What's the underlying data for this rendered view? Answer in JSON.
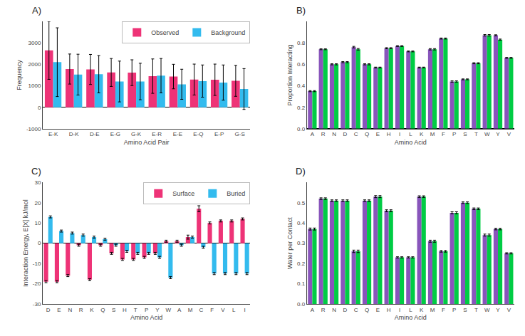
{
  "chart_data": [
    {
      "type": "bar",
      "title": "A)",
      "x_label": "Amino Acid Pair",
      "y_label": "Frequency",
      "categories": [
        "E-K",
        "D-K",
        "D-E",
        "E-G",
        "G-K",
        "E-R",
        "E-E",
        "E-Q",
        "E-P",
        "G-S"
      ],
      "series": [
        {
          "name": "Observed",
          "color": "#EE3377",
          "values": [
            2650,
            1780,
            1760,
            1620,
            1610,
            1450,
            1430,
            1290,
            1280,
            1230
          ],
          "error_plus": [
            1350,
            700,
            700,
            650,
            600,
            800,
            570,
            720,
            730,
            720
          ],
          "error_minus": [
            1350,
            700,
            700,
            650,
            600,
            800,
            570,
            720,
            730,
            720
          ]
        },
        {
          "name": "Background",
          "color": "#33BBEE",
          "values": [
            2100,
            1520,
            1540,
            1200,
            1200,
            1470,
            1070,
            1220,
            1150,
            850
          ],
          "error_plus": [
            1600,
            950,
            870,
            950,
            850,
            800,
            700,
            750,
            820,
            950
          ],
          "error_minus": [
            1600,
            950,
            870,
            950,
            850,
            800,
            700,
            750,
            820,
            950
          ]
        }
      ],
      "ylim": [
        -1000,
        4000
      ],
      "yticks": [
        -1000,
        0,
        1000,
        2000,
        3000
      ],
      "grid": false,
      "legend": "upper right"
    },
    {
      "type": "bar",
      "title": "B)",
      "x_label": "Amino Acid",
      "y_label": "Proportion Interacting",
      "categories": [
        "A",
        "R",
        "N",
        "D",
        "C",
        "Q",
        "E",
        "H",
        "I",
        "L",
        "K",
        "M",
        "F",
        "P",
        "S",
        "T",
        "W",
        "Y",
        "V"
      ],
      "series": [
        {
          "color": "#8855BB",
          "values": [
            0.35,
            0.74,
            0.6,
            0.62,
            0.76,
            0.6,
            0.57,
            0.75,
            0.77,
            0.72,
            0.57,
            0.74,
            0.84,
            0.44,
            0.46,
            0.61,
            0.87,
            0.87,
            0.66
          ],
          "errors": [
            0.005,
            0.004,
            0.005,
            0.005,
            0.007,
            0.005,
            0.004,
            0.005,
            0.004,
            0.004,
            0.004,
            0.006,
            0.005,
            0.006,
            0.004,
            0.005,
            0.007,
            0.005,
            0.004
          ]
        },
        {
          "color": "#00CC44",
          "values": [
            0.35,
            0.74,
            0.6,
            0.62,
            0.74,
            0.6,
            0.57,
            0.75,
            0.77,
            0.72,
            0.57,
            0.74,
            0.84,
            0.44,
            0.46,
            0.61,
            0.87,
            0.83,
            0.66
          ],
          "errors": [
            0.005,
            0.004,
            0.005,
            0.005,
            0.007,
            0.005,
            0.004,
            0.005,
            0.004,
            0.004,
            0.004,
            0.006,
            0.005,
            0.006,
            0.004,
            0.005,
            0.007,
            0.005,
            0.004
          ]
        }
      ],
      "ylim": [
        0.0,
        1.0
      ],
      "yticks": [
        {
          "value": 0.0,
          "label": "0.0"
        },
        0.2,
        0.4,
        0.6,
        0.8
      ],
      "grid": false
    },
    {
      "type": "bar",
      "title": "C)",
      "x_label": "Amino Acid",
      "y_label": "Interaction Energy, E[X] kJ/mol",
      "categories": [
        "D",
        "E",
        "N",
        "R",
        "K",
        "Q",
        "S",
        "H",
        "T",
        "P",
        "Y",
        "W",
        "A",
        "M",
        "C",
        "F",
        "V",
        "L",
        "I"
      ],
      "series": [
        {
          "name": "Surface",
          "color": "#EE3377",
          "values": [
            -19,
            -19,
            -16,
            -1,
            -18,
            -1,
            -5,
            -8,
            -8,
            -7,
            -5,
            1,
            1,
            3,
            17,
            10,
            11,
            11,
            12
          ],
          "errors": [
            0.5,
            0.5,
            0.5,
            0.5,
            0.5,
            0.5,
            0.5,
            0.5,
            0.5,
            0.5,
            0.5,
            0.5,
            0.5,
            1.0,
            1.5,
            0.5,
            0.5,
            0.5,
            0.5
          ]
        },
        {
          "name": "Buried",
          "color": "#33BBEE",
          "values": [
            13,
            6,
            5,
            4,
            3,
            2,
            -1,
            -4,
            -5,
            -5,
            -7,
            -17,
            -1,
            3,
            -2,
            -15,
            -15,
            -15,
            -15
          ],
          "errors": [
            0.5,
            0.5,
            0.5,
            0.5,
            0.5,
            0.5,
            0.5,
            0.5,
            0.5,
            0.5,
            0.5,
            0.5,
            0.5,
            0.5,
            0.5,
            0.5,
            0.5,
            0.5,
            0.5
          ]
        }
      ],
      "ylim": [
        -30,
        30
      ],
      "yticks": [
        -30,
        -20,
        -10,
        0,
        10,
        20,
        30
      ],
      "grid": false,
      "legend": "upper right"
    },
    {
      "type": "bar",
      "title": "D)",
      "x_label": "Amino Acid",
      "y_label": "Water per Contact",
      "categories": [
        "A",
        "R",
        "N",
        "D",
        "C",
        "Q",
        "E",
        "H",
        "I",
        "L",
        "K",
        "M",
        "F",
        "P",
        "S",
        "T",
        "W",
        "Y",
        "V"
      ],
      "series": [
        {
          "color": "#8855BB",
          "values": [
            0.37,
            0.52,
            0.51,
            0.51,
            0.26,
            0.51,
            0.53,
            0.46,
            0.23,
            0.23,
            0.53,
            0.31,
            0.26,
            0.45,
            0.5,
            0.47,
            0.34,
            0.37,
            0.25
          ],
          "errors": [
            0.005,
            0.004,
            0.004,
            0.004,
            0.006,
            0.004,
            0.005,
            0.005,
            0.003,
            0.003,
            0.004,
            0.005,
            0.004,
            0.005,
            0.004,
            0.004,
            0.005,
            0.004,
            0.003
          ]
        },
        {
          "color": "#00CC44",
          "values": [
            0.37,
            0.52,
            0.51,
            0.51,
            0.26,
            0.51,
            0.53,
            0.46,
            0.23,
            0.23,
            0.53,
            0.31,
            0.26,
            0.45,
            0.5,
            0.47,
            0.34,
            0.37,
            0.25
          ],
          "errors": [
            0.005,
            0.004,
            0.004,
            0.004,
            0.006,
            0.004,
            0.005,
            0.005,
            0.003,
            0.003,
            0.004,
            0.005,
            0.004,
            0.005,
            0.004,
            0.004,
            0.005,
            0.004,
            0.003
          ]
        }
      ],
      "ylim": [
        0.0,
        0.6
      ],
      "yticks": [
        {
          "value": 0.0,
          "label": "0.0"
        },
        0.1,
        0.2,
        0.3,
        0.4,
        0.5
      ],
      "grid": false
    }
  ]
}
